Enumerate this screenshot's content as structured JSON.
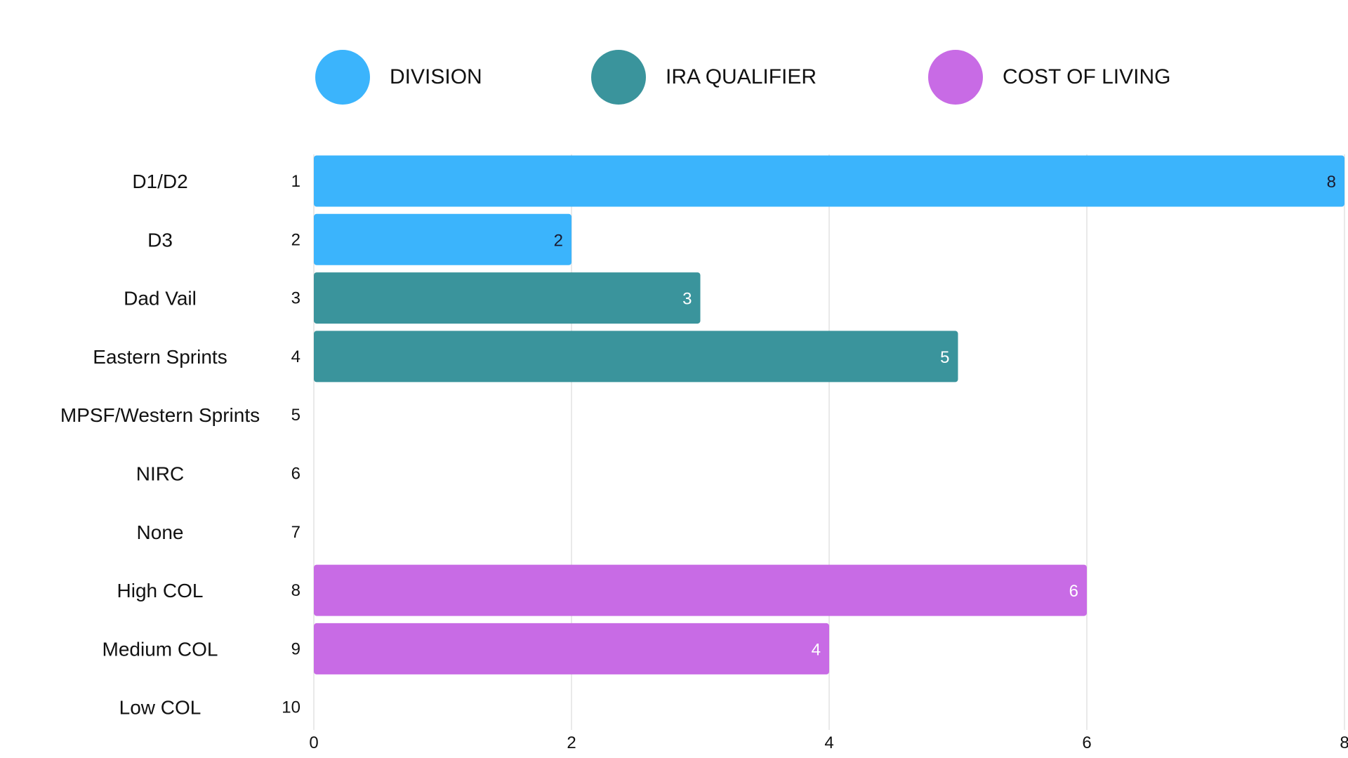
{
  "chart_data": {
    "type": "bar",
    "orientation": "horizontal",
    "legend": [
      {
        "name": "DIVISION",
        "color": "#3BB4FC"
      },
      {
        "name": "IRA QUALIFIER",
        "color": "#3A949C"
      },
      {
        "name": "COST OF LIVING",
        "color": "#C86BE5"
      }
    ],
    "categories": [
      {
        "label": "D1/D2",
        "index": "1",
        "value": 8,
        "group": "DIVISION"
      },
      {
        "label": "D3",
        "index": "2",
        "value": 2,
        "group": "DIVISION"
      },
      {
        "label": "Dad Vail",
        "index": "3",
        "value": 3,
        "group": "IRA QUALIFIER"
      },
      {
        "label": "Eastern Sprints",
        "index": "4",
        "value": 5,
        "group": "IRA QUALIFIER"
      },
      {
        "label": "MPSF/Western Sprints",
        "index": "5",
        "value": null,
        "group": "IRA QUALIFIER"
      },
      {
        "label": "NIRC",
        "index": "6",
        "value": null,
        "group": "IRA QUALIFIER"
      },
      {
        "label": "None",
        "index": "7",
        "value": null,
        "group": "IRA QUALIFIER"
      },
      {
        "label": "High COL",
        "index": "8",
        "value": 6,
        "group": "COST OF LIVING"
      },
      {
        "label": "Medium COL",
        "index": "9",
        "value": 4,
        "group": "COST OF LIVING"
      },
      {
        "label": "Low COL",
        "index": "10",
        "value": null,
        "group": "COST OF LIVING"
      }
    ],
    "x_ticks": [
      "0",
      "2",
      "4",
      "6",
      "8"
    ],
    "xlim": [
      0,
      8
    ],
    "grid": true,
    "legend_position": "top"
  }
}
